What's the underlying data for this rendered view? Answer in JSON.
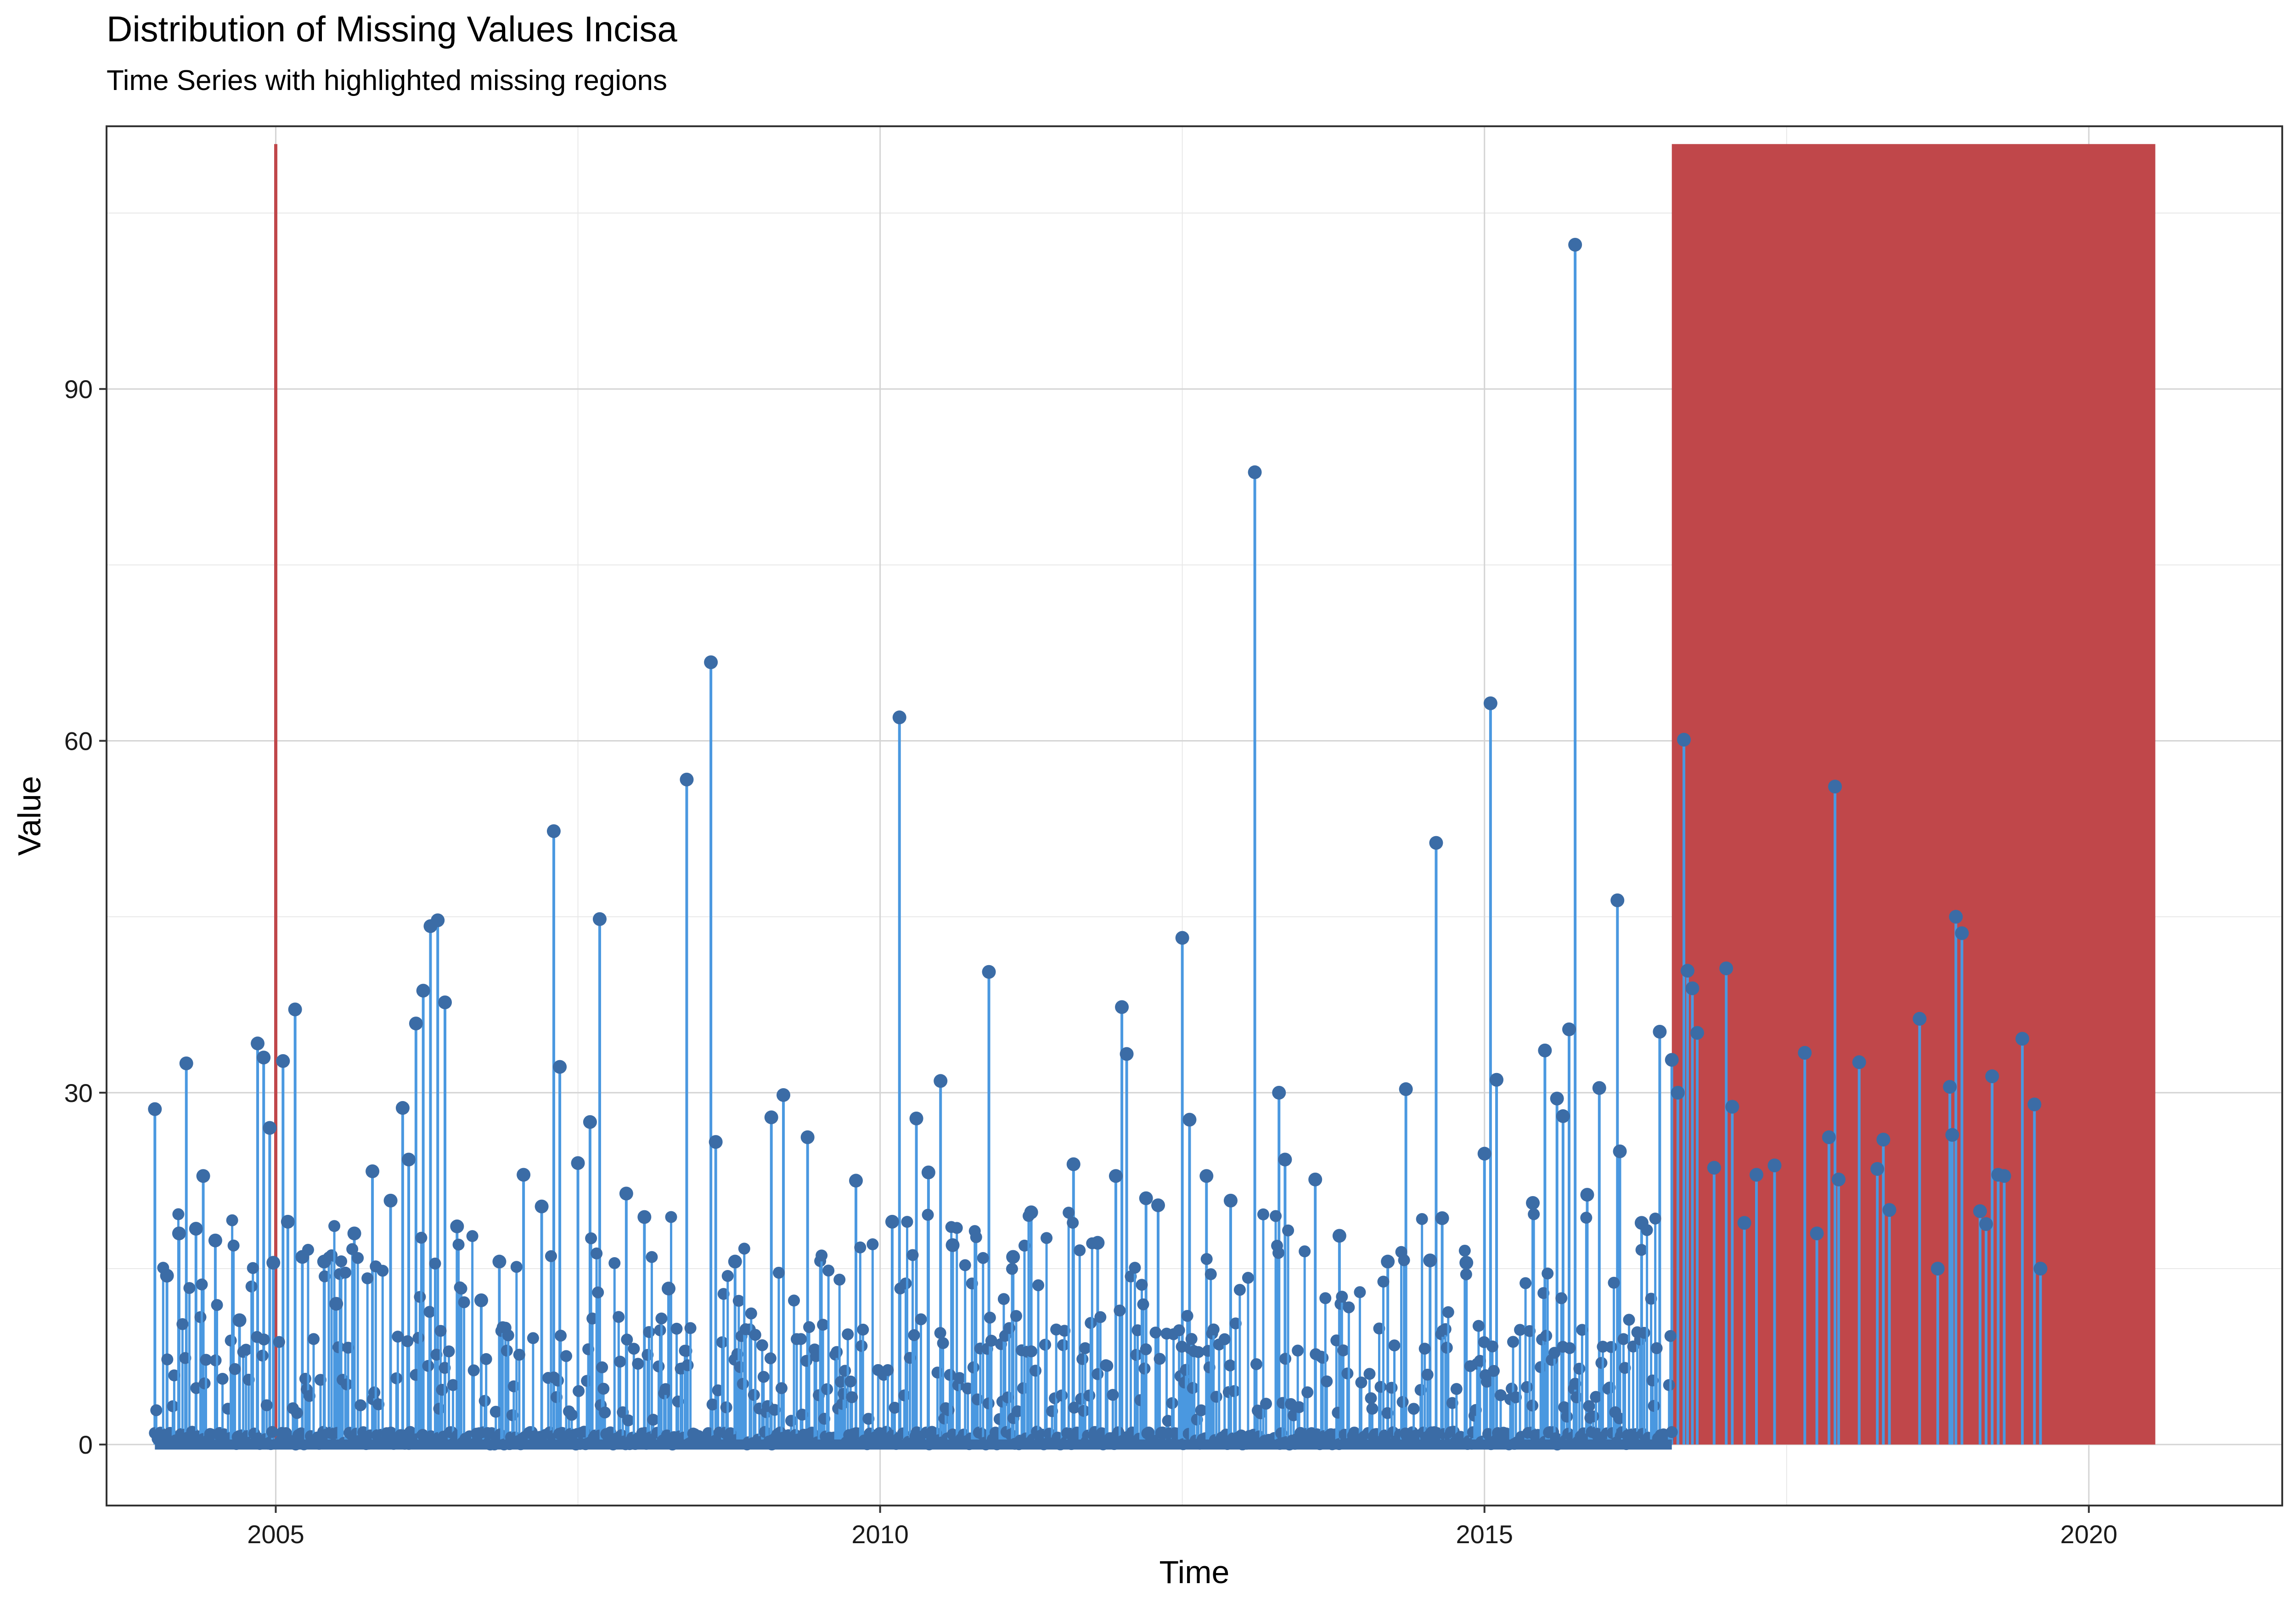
{
  "chart_data": {
    "type": "line",
    "title": "Distribution of Missing Values Incisa",
    "subtitle": "Time Series with highlighted missing regions",
    "xlabel": "Time",
    "ylabel": "Value",
    "xlim": [
      2003.6,
      2021.6
    ],
    "ylim": [
      -5.2,
      112.4
    ],
    "x_ticks": [
      2005,
      2010,
      2015,
      2020
    ],
    "y_ticks": [
      0,
      30,
      60,
      90
    ],
    "grid": true,
    "legend": "none",
    "colors": {
      "line": "#4a98e0",
      "points": "#3b6ca6",
      "missing": "#c0474a"
    },
    "series": [
      {
        "values": [
          [
            2004.0,
            28.6
          ],
          [
            2004.1,
            14.4
          ],
          [
            2004.2,
            18.0
          ],
          [
            2004.26,
            32.5
          ],
          [
            2004.34,
            18.4
          ],
          [
            2004.4,
            22.9
          ],
          [
            2004.5,
            17.4
          ],
          [
            2004.7,
            10.6
          ],
          [
            2004.85,
            34.2
          ],
          [
            2004.9,
            33.0
          ],
          [
            2004.95,
            27.0
          ],
          [
            2004.98,
            15.5
          ],
          [
            2005.06,
            32.7
          ],
          [
            2005.1,
            19.0
          ],
          [
            2005.16,
            37.1
          ],
          [
            2005.22,
            16.0
          ],
          [
            2005.4,
            15.6
          ],
          [
            2005.5,
            12.0
          ],
          [
            2005.65,
            18.0
          ],
          [
            2005.8,
            23.3
          ],
          [
            2005.95,
            20.8
          ],
          [
            2006.05,
            28.7
          ],
          [
            2006.1,
            24.3
          ],
          [
            2006.16,
            35.9
          ],
          [
            2006.22,
            38.7
          ],
          [
            2006.28,
            44.2
          ],
          [
            2006.34,
            44.7
          ],
          [
            2006.4,
            37.7
          ],
          [
            2006.5,
            18.6
          ],
          [
            2006.7,
            12.3
          ],
          [
            2006.85,
            15.6
          ],
          [
            2007.05,
            23.0
          ],
          [
            2007.2,
            20.3
          ],
          [
            2007.3,
            52.3
          ],
          [
            2007.35,
            32.2
          ],
          [
            2007.5,
            24.0
          ],
          [
            2007.6,
            27.5
          ],
          [
            2007.68,
            44.8
          ],
          [
            2007.9,
            21.4
          ],
          [
            2008.05,
            19.4
          ],
          [
            2008.25,
            13.3
          ],
          [
            2008.4,
            56.7
          ],
          [
            2008.6,
            66.7
          ],
          [
            2008.64,
            25.8
          ],
          [
            2008.8,
            15.6
          ],
          [
            2009.1,
            27.9
          ],
          [
            2009.2,
            29.8
          ],
          [
            2009.4,
            26.2
          ],
          [
            2009.8,
            22.5
          ],
          [
            2010.1,
            19.0
          ],
          [
            2010.16,
            62.0
          ],
          [
            2010.3,
            27.8
          ],
          [
            2010.4,
            23.2
          ],
          [
            2010.5,
            31.0
          ],
          [
            2010.6,
            17.0
          ],
          [
            2010.9,
            40.3
          ],
          [
            2011.1,
            16.0
          ],
          [
            2011.25,
            19.8
          ],
          [
            2011.6,
            23.9
          ],
          [
            2011.8,
            17.2
          ],
          [
            2011.95,
            22.9
          ],
          [
            2012.0,
            37.3
          ],
          [
            2012.04,
            33.3
          ],
          [
            2012.2,
            21.0
          ],
          [
            2012.3,
            20.4
          ],
          [
            2012.5,
            43.2
          ],
          [
            2012.56,
            27.7
          ],
          [
            2012.7,
            22.9
          ],
          [
            2012.9,
            20.8
          ],
          [
            2013.1,
            82.9
          ],
          [
            2013.3,
            30.0
          ],
          [
            2013.35,
            24.3
          ],
          [
            2013.6,
            22.6
          ],
          [
            2013.8,
            17.8
          ],
          [
            2014.2,
            15.6
          ],
          [
            2014.35,
            30.3
          ],
          [
            2014.55,
            15.7
          ],
          [
            2014.6,
            51.3
          ],
          [
            2014.65,
            19.3
          ],
          [
            2014.85,
            15.5
          ],
          [
            2015.0,
            24.8
          ],
          [
            2015.05,
            63.2
          ],
          [
            2015.1,
            31.1
          ],
          [
            2015.4,
            20.6
          ],
          [
            2015.5,
            33.6
          ],
          [
            2015.6,
            29.5
          ],
          [
            2015.65,
            28.0
          ],
          [
            2015.7,
            35.4
          ],
          [
            2015.75,
            102.3
          ],
          [
            2015.85,
            21.3
          ],
          [
            2015.95,
            30.4
          ],
          [
            2016.1,
            46.4
          ],
          [
            2016.12,
            25.0
          ],
          [
            2016.3,
            18.9
          ],
          [
            2016.45,
            35.2
          ],
          [
            2016.55,
            32.8
          ],
          [
            2016.6,
            30.0
          ],
          [
            2016.65,
            60.1
          ],
          [
            2016.68,
            40.4
          ],
          [
            2016.72,
            38.9
          ],
          [
            2016.76,
            35.1
          ],
          [
            2016.9,
            23.6
          ],
          [
            2017.0,
            40.6
          ],
          [
            2017.05,
            28.8
          ],
          [
            2017.15,
            18.9
          ],
          [
            2017.25,
            23.0
          ],
          [
            2017.4,
            23.8
          ],
          [
            2017.65,
            33.4
          ],
          [
            2017.75,
            18.0
          ],
          [
            2017.85,
            26.2
          ],
          [
            2017.9,
            56.1
          ],
          [
            2017.93,
            22.6
          ],
          [
            2018.1,
            32.6
          ],
          [
            2018.25,
            23.5
          ],
          [
            2018.3,
            26.0
          ],
          [
            2018.35,
            20.0
          ],
          [
            2018.6,
            36.3
          ],
          [
            2018.75,
            15.0
          ],
          [
            2018.85,
            30.5
          ],
          [
            2018.87,
            26.4
          ],
          [
            2018.9,
            45.0
          ],
          [
            2018.95,
            43.6
          ],
          [
            2019.1,
            19.9
          ],
          [
            2019.15,
            18.8
          ],
          [
            2019.2,
            31.4
          ],
          [
            2019.25,
            23.0
          ],
          [
            2019.3,
            22.9
          ],
          [
            2019.45,
            34.6
          ],
          [
            2019.55,
            29.0
          ],
          [
            2019.6,
            15.0
          ]
        ]
      }
    ],
    "missing_regions": [
      {
        "start": 2005.0,
        "end": 2005.0,
        "label": ""
      },
      {
        "start": 2016.55,
        "end": 2020.55,
        "label": ""
      }
    ]
  }
}
